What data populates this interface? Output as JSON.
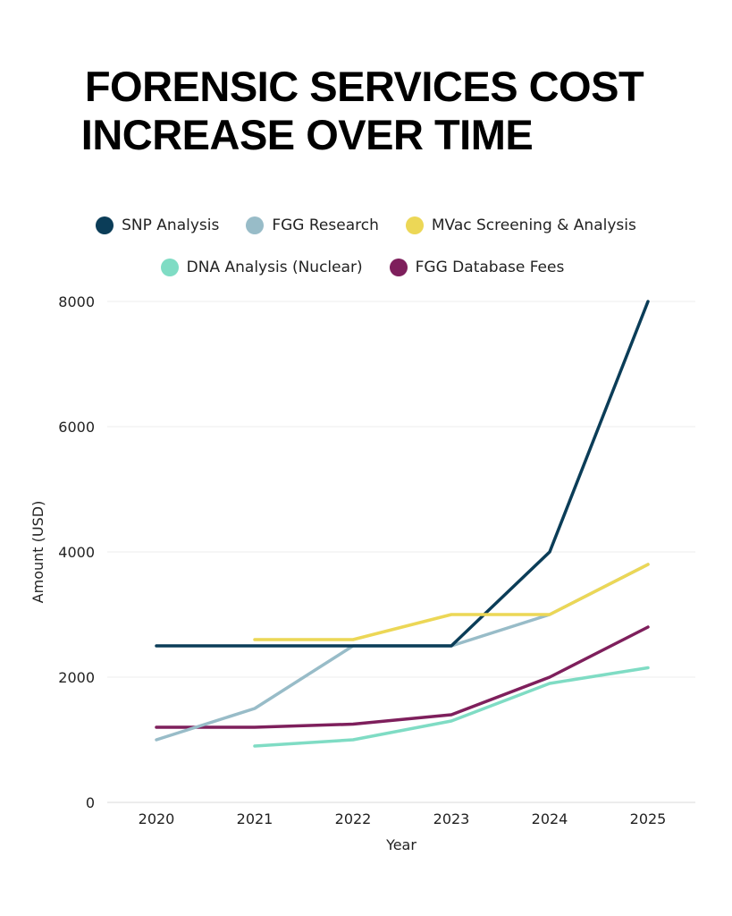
{
  "title": {
    "line1": "FORENSIC SERVICES COST",
    "line2": "INCREASE OVER TIME"
  },
  "chart_data": {
    "type": "line",
    "title": "FORENSIC SERVICES COST INCREASE OVER TIME",
    "xlabel": "Year",
    "ylabel": "Amount (USD)",
    "x": [
      "2020",
      "2021",
      "2022",
      "2023",
      "2024",
      "2025"
    ],
    "ylim": [
      0,
      8000
    ],
    "yticks": [
      0,
      2000,
      4000,
      6000,
      8000
    ],
    "grid": true,
    "legend_position": "top-center",
    "series": [
      {
        "name": "SNP Analysis",
        "color": "#0b3d58",
        "values": [
          2500,
          2500,
          2500,
          2500,
          4000,
          8000
        ]
      },
      {
        "name": "FGG Research",
        "color": "#98bcc8",
        "values": [
          1000,
          1500,
          2500,
          2500,
          3000,
          3800
        ]
      },
      {
        "name": "MVac Screening & Analysis",
        "color": "#ecd756",
        "values": [
          null,
          2600,
          2600,
          3000,
          3000,
          3800
        ]
      },
      {
        "name": "DNA Analysis (Nuclear)",
        "color": "#7fdcc4",
        "values": [
          null,
          900,
          1000,
          1300,
          1900,
          2150
        ]
      },
      {
        "name": "FGG Database Fees",
        "color": "#7e1f5c",
        "values": [
          1200,
          1200,
          1250,
          1400,
          2000,
          2800
        ]
      }
    ]
  }
}
